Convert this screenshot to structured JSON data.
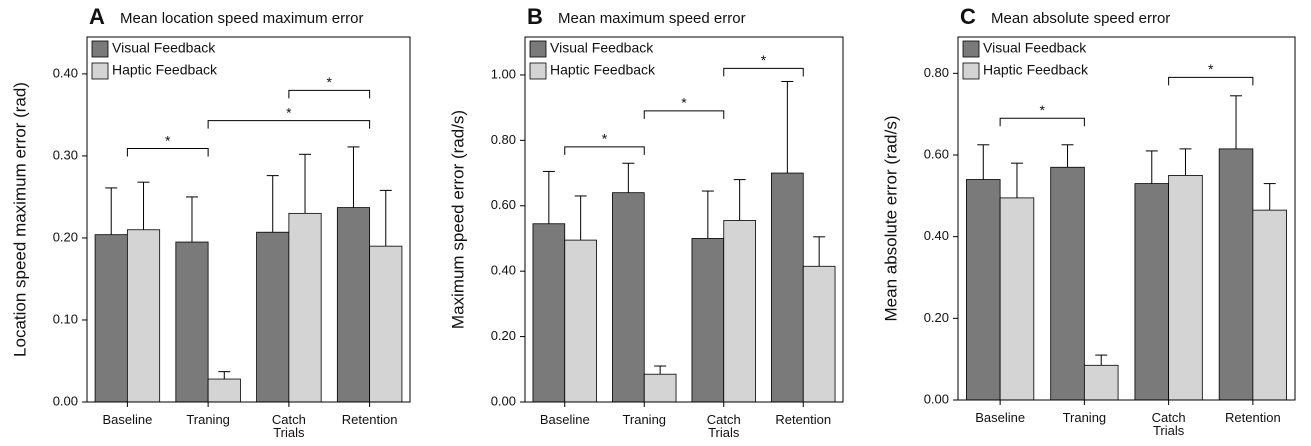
{
  "chart_data": [
    {
      "type": "bar",
      "panel": "A",
      "title": "Mean location speed maximum error",
      "y_label": "Location speed maximum error (rad)",
      "categories": [
        "Baseline",
        "Traning",
        "Catch Trials",
        "Retention"
      ],
      "series": [
        {
          "name": "Visual Feedback",
          "color": "#7a7a7a",
          "values": [
            0.204,
            0.195,
            0.207,
            0.237
          ],
          "errors": [
            0.057,
            0.055,
            0.069,
            0.074
          ]
        },
        {
          "name": "Haptic Feedback",
          "color": "#d4d4d4",
          "values": [
            0.21,
            0.028,
            0.23,
            0.19
          ],
          "errors": [
            0.058,
            0.009,
            0.072,
            0.068
          ]
        }
      ],
      "ylim": [
        0,
        0.445
      ],
      "yticks": [
        {
          "value": 0,
          "label": "0.00"
        },
        {
          "value": 0.1,
          "label": "0.10"
        },
        {
          "value": 0.2,
          "label": "0.20"
        },
        {
          "value": 0.3,
          "label": "0.30"
        },
        {
          "value": 0.4,
          "label": "0.40"
        }
      ],
      "brackets": [
        {
          "from": "Baseline",
          "to": "Traning",
          "y": 0.309,
          "label": "*"
        },
        {
          "from": "Traning",
          "to": "Retention",
          "y": 0.343,
          "label": "*"
        },
        {
          "from": "Catch Trials",
          "to": "Retention",
          "y": 0.38,
          "label": "*"
        }
      ]
    },
    {
      "type": "bar",
      "panel": "B",
      "title": "Mean maximum speed error",
      "y_label": "Maximum speed error (rad/s)",
      "categories": [
        "Baseline",
        "Traning",
        "Catch Trials",
        "Retention"
      ],
      "series": [
        {
          "name": "Visual Feedback",
          "color": "#7a7a7a",
          "values": [
            0.545,
            0.64,
            0.5,
            0.7
          ],
          "errors": [
            0.16,
            0.09,
            0.145,
            0.28
          ]
        },
        {
          "name": "Haptic Feedback",
          "color": "#d4d4d4",
          "values": [
            0.495,
            0.085,
            0.555,
            0.415
          ],
          "errors": [
            0.135,
            0.025,
            0.125,
            0.09
          ]
        }
      ],
      "ylim": [
        0,
        1.116
      ],
      "yticks": [
        {
          "value": 0,
          "label": "0.00"
        },
        {
          "value": 0.2,
          "label": "0.20"
        },
        {
          "value": 0.4,
          "label": "0.40"
        },
        {
          "value": 0.6,
          "label": "0.60"
        },
        {
          "value": 0.8,
          "label": "0.80"
        },
        {
          "value": 1,
          "label": "1.00"
        }
      ],
      "brackets": [
        {
          "from": "Baseline",
          "to": "Traning",
          "y": 0.78,
          "label": "*"
        },
        {
          "from": "Traning",
          "to": "Catch Trials",
          "y": 0.89,
          "label": "*"
        },
        {
          "from": "Catch Trials",
          "to": "Retention",
          "y": 1.02,
          "label": "*"
        }
      ]
    },
    {
      "type": "bar",
      "panel": "C",
      "title": "Mean absolute speed error",
      "y_label": "Mean absolute error (rad/s)",
      "categories": [
        "Baseline",
        "Traning",
        "Catch Trials",
        "Retention"
      ],
      "series": [
        {
          "name": "Visual Feedback",
          "color": "#7a7a7a",
          "values": [
            0.54,
            0.57,
            0.53,
            0.615
          ],
          "errors": [
            0.085,
            0.055,
            0.08,
            0.13
          ]
        },
        {
          "name": "Haptic Feedback",
          "color": "#d4d4d4",
          "values": [
            0.495,
            0.085,
            0.55,
            0.465
          ],
          "errors": [
            0.085,
            0.025,
            0.065,
            0.065
          ]
        }
      ],
      "ylim": [
        0,
        0.889
      ],
      "yticks": [
        {
          "value": 0,
          "label": "0.00"
        },
        {
          "value": 0.2,
          "label": "0.20"
        },
        {
          "value": 0.4,
          "label": "0.40"
        },
        {
          "value": 0.6,
          "label": "0.60"
        },
        {
          "value": 0.8,
          "label": "0.80"
        }
      ],
      "brackets": [
        {
          "from": "Baseline",
          "to": "Traning",
          "y": 0.69,
          "label": "*"
        },
        {
          "from": "Catch Trials",
          "to": "Retention",
          "y": 0.79,
          "label": "*"
        }
      ]
    }
  ]
}
